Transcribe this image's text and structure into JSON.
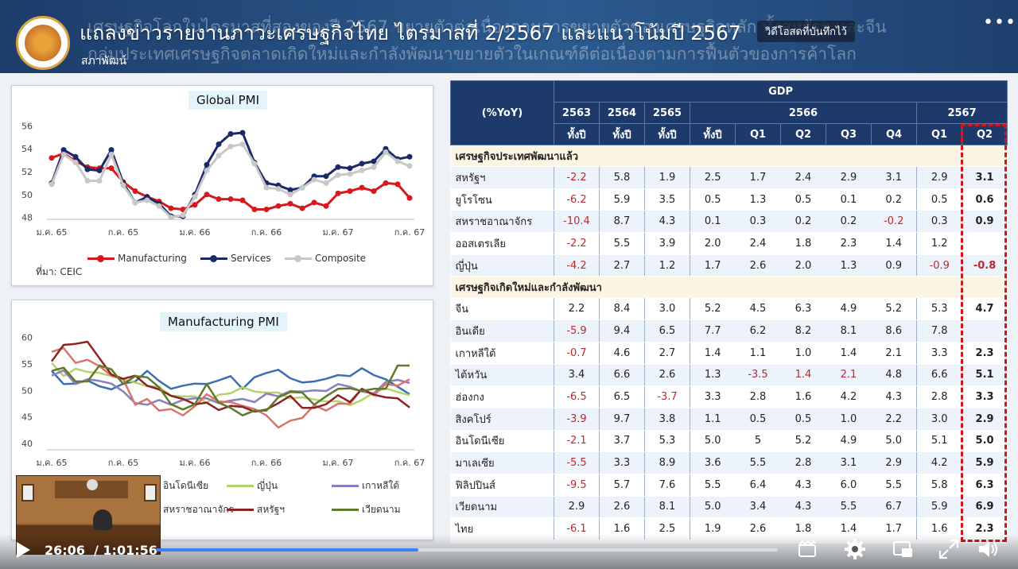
{
  "header": {
    "video_title": "แถลงข่าวรายงานภาวะเศรษฐกิจไทย ไตรมาสที่ 2/2567 และแนวโน้มปี 2567",
    "channel_name": "สภาพัฒน์",
    "live_badge": "วิดีโอสดที่บันทึกไว้",
    "background_line_1": "เศรษฐกิจโลกในไตรมาสที่สองของปี 2567 ขยายตัวต่อเนื่องตามการขยายตัวของเศรษฐกิจหลัก ทั้งสหรัฐฯ และจีน",
    "background_line_2": "กลุ่มประเทศเศรษฐกิจตลาดเกิดใหม่และกำลังพัฒนาขยายตัวในเกณฑ์ดีต่อเนื่องตามการฟื้นตัวของการค้าโลก"
  },
  "chart_data": [
    {
      "type": "line",
      "title": "Global PMI",
      "x_ticks": [
        "ม.ค. 65",
        "ก.ค. 65",
        "ม.ค. 66",
        "ก.ค. 66",
        "ม.ค. 67",
        "ก.ค. 67"
      ],
      "y_ticks": [
        48,
        50,
        52,
        54,
        56
      ],
      "ylim": [
        47,
        57
      ],
      "x_count": 31,
      "source": "ที่มา: CEIC",
      "legend_position": "bottom",
      "series": [
        {
          "name": "Manufacturing",
          "color": "#d7191c",
          "values": [
            53.2,
            53.6,
            52.9,
            52.4,
            52.3,
            52.3,
            51.1,
            50.3,
            49.8,
            49.4,
            48.8,
            48.7,
            49.1,
            50.0,
            49.6,
            49.6,
            49.5,
            48.7,
            48.7,
            49.0,
            49.2,
            48.8,
            49.3,
            49.0,
            50.1,
            50.3,
            50.6,
            50.3,
            51.0,
            50.9,
            49.7
          ]
        },
        {
          "name": "Services",
          "color": "#1a2a66",
          "values": [
            51.0,
            53.9,
            53.3,
            52.2,
            52.1,
            53.9,
            51.0,
            49.3,
            49.8,
            49.2,
            48.1,
            48.1,
            50.0,
            52.6,
            54.4,
            55.3,
            55.4,
            52.8,
            51.0,
            50.8,
            50.4,
            50.6,
            51.6,
            51.6,
            52.4,
            52.3,
            52.7,
            52.9,
            54.0,
            53.1,
            53.3
          ]
        },
        {
          "name": "Composite",
          "color": "#c8c8c8",
          "values": [
            50.9,
            53.5,
            52.8,
            51.2,
            51.2,
            53.5,
            50.8,
            49.3,
            49.5,
            49.0,
            48.0,
            48.2,
            49.8,
            52.1,
            53.4,
            54.2,
            54.4,
            52.7,
            50.6,
            50.5,
            50.0,
            50.6,
            51.3,
            51.0,
            51.7,
            51.8,
            52.1,
            52.4,
            53.7,
            52.9,
            52.5
          ]
        }
      ]
    },
    {
      "type": "line",
      "title": "Manufacturing PMI",
      "x_ticks": [
        "ม.ค. 65",
        "ก.ค. 65",
        "ม.ค. 66",
        "ก.ค. 66",
        "ม.ค. 67",
        "ก.ค. 67"
      ],
      "y_ticks": [
        40,
        45,
        50,
        55,
        60
      ],
      "ylim": [
        40,
        61
      ],
      "x_count": 31,
      "legend_position": "bottom",
      "series": [
        {
          "name": "อินโดนีเซีย",
          "color": "#3a6fb0",
          "values": [
            53.7,
            51.2,
            51.3,
            51.9,
            50.8,
            50.2,
            51.3,
            51.7,
            53.7,
            51.8,
            50.3,
            50.9,
            51.3,
            51.2,
            51.9,
            52.7,
            50.3,
            52.5,
            53.3,
            53.9,
            52.3,
            51.5,
            51.7,
            52.2,
            52.9,
            52.7,
            54.2,
            52.9,
            52.1,
            50.7,
            49.3
          ]
        },
        {
          "name": "ญี่ปุ่น",
          "color": "#b5d36a",
          "values": [
            55.2,
            52.7,
            54.1,
            53.5,
            53.3,
            52.7,
            52.1,
            51.5,
            50.8,
            50.7,
            49.0,
            48.9,
            48.9,
            47.7,
            49.2,
            49.5,
            50.6,
            49.8,
            49.6,
            49.6,
            48.5,
            48.7,
            48.3,
            47.9,
            48.0,
            47.2,
            48.2,
            49.6,
            50.4,
            49.7,
            49.1
          ]
        },
        {
          "name": "เกาหลีใต้",
          "color": "#8a7fc0",
          "values": [
            52.8,
            53.8,
            51.2,
            52.1,
            51.8,
            51.3,
            49.8,
            47.6,
            47.3,
            48.2,
            47.3,
            48.2,
            48.5,
            48.5,
            47.6,
            48.1,
            48.4,
            47.8,
            49.4,
            48.9,
            49.9,
            49.8,
            50.0,
            49.9,
            51.2,
            50.7,
            49.8,
            49.4,
            51.6,
            52.0,
            51.4
          ]
        },
        {
          "name": "สหราชอาณาจักร",
          "color": "#d9746a",
          "values": [
            57.3,
            58.0,
            55.2,
            55.8,
            54.6,
            52.8,
            52.1,
            47.3,
            48.4,
            46.2,
            46.5,
            45.3,
            47.0,
            49.3,
            47.9,
            47.8,
            47.1,
            46.5,
            45.3,
            43.0,
            44.3,
            44.8,
            47.2,
            46.2,
            47.5,
            47.5,
            50.3,
            49.1,
            51.2,
            50.9,
            52.1
          ]
        },
        {
          "name": "สหรัฐฯ",
          "color": "#8b2323",
          "values": [
            55.5,
            58.6,
            58.8,
            59.2,
            56.1,
            53.0,
            52.2,
            52.8,
            50.9,
            50.2,
            49.0,
            48.4,
            47.4,
            47.7,
            46.3,
            47.1,
            46.9,
            46.0,
            46.4,
            47.6,
            49.0,
            46.7,
            46.7,
            47.4,
            49.1,
            47.8,
            50.3,
            49.2,
            48.7,
            48.5,
            46.8
          ]
        },
        {
          "name": "เวียดนาม",
          "color": "#5f7a2a",
          "values": [
            53.7,
            54.3,
            51.7,
            51.7,
            54.7,
            54.0,
            51.2,
            52.7,
            52.5,
            50.6,
            47.4,
            46.4,
            47.4,
            51.2,
            47.7,
            46.7,
            45.3,
            46.2,
            46.2,
            48.7,
            49.7,
            49.6,
            47.3,
            48.9,
            50.3,
            50.4,
            49.9,
            50.3,
            50.3,
            54.7,
            54.7
          ]
        }
      ]
    }
  ],
  "gdp_table": {
    "unit_label": "(%YoY)",
    "group_label": "GDP",
    "years": [
      "2563",
      "2564",
      "2565",
      "2566",
      "2567"
    ],
    "subheaders": [
      "ทั้งปี",
      "ทั้งปี",
      "ทั้งปี",
      "ทั้งปี",
      "Q1",
      "Q2",
      "Q3",
      "Q4",
      "Q1",
      "Q2"
    ],
    "sections": [
      {
        "title": "เศรษฐกิจประเทศพัฒนาแล้ว",
        "rows": [
          {
            "country": "สหรัฐฯ",
            "values": [
              "-2.2",
              "5.8",
              "1.9",
              "2.5",
              "1.7",
              "2.4",
              "2.9",
              "3.1",
              "2.9",
              "3.1"
            ]
          },
          {
            "country": "ยูโรโซน",
            "values": [
              "-6.2",
              "5.9",
              "3.5",
              "0.5",
              "1.3",
              "0.5",
              "0.1",
              "0.2",
              "0.5",
              "0.6"
            ]
          },
          {
            "country": "สหราชอาณาจักร",
            "values": [
              "-10.4",
              "8.7",
              "4.3",
              "0.1",
              "0.3",
              "0.2",
              "0.2",
              "-0.2",
              "0.3",
              "0.9"
            ]
          },
          {
            "country": "ออสเตรเลีย",
            "values": [
              "-2.2",
              "5.5",
              "3.9",
              "2.0",
              "2.4",
              "1.8",
              "2.3",
              "1.4",
              "1.2",
              ""
            ]
          },
          {
            "country": "ญี่ปุ่น",
            "values": [
              "-4.2",
              "2.7",
              "1.2",
              "1.7",
              "2.6",
              "2.0",
              "1.3",
              "0.9",
              "-0.9",
              "-0.8"
            ]
          }
        ]
      },
      {
        "title": "เศรษฐกิจเกิดใหม่และกำลังพัฒนา",
        "rows": [
          {
            "country": "จีน",
            "values": [
              "2.2",
              "8.4",
              "3.0",
              "5.2",
              "4.5",
              "6.3",
              "4.9",
              "5.2",
              "5.3",
              "4.7"
            ]
          },
          {
            "country": "อินเดีย",
            "values": [
              "-5.9",
              "9.4",
              "6.5",
              "7.7",
              "6.2",
              "8.2",
              "8.1",
              "8.6",
              "7.8",
              ""
            ]
          },
          {
            "country": "เกาหลีใต้",
            "values": [
              "-0.7",
              "4.6",
              "2.7",
              "1.4",
              "1.1",
              "1.0",
              "1.4",
              "2.1",
              "3.3",
              "2.3"
            ]
          },
          {
            "country": "ไต้หวัน",
            "values": [
              "3.4",
              "6.6",
              "2.6",
              "1.3",
              "-3.5",
              "1.4",
              "2.1",
              "4.8",
              "6.6",
              "5.1"
            ]
          },
          {
            "country": "ฮ่องกง",
            "values": [
              "-6.5",
              "6.5",
              "-3.7",
              "3.3",
              "2.8",
              "1.6",
              "4.2",
              "4.3",
              "2.8",
              "3.3"
            ]
          },
          {
            "country": "สิงคโปร์",
            "values": [
              "-3.9",
              "9.7",
              "3.8",
              "1.1",
              "0.5",
              "0.5",
              "1.0",
              "2.2",
              "3.0",
              "2.9"
            ]
          },
          {
            "country": "อินโดนีเซีย",
            "values": [
              "-2.1",
              "3.7",
              "5.3",
              "5.0",
              "5",
              "5.2",
              "4.9",
              "5.0",
              "5.1",
              "5.0"
            ]
          },
          {
            "country": "มาเลเซีย",
            "values": [
              "-5.5",
              "3.3",
              "8.9",
              "3.6",
              "5.5",
              "2.8",
              "3.1",
              "2.9",
              "4.2",
              "5.9"
            ]
          },
          {
            "country": "ฟิลิปปินส์",
            "values": [
              "-9.5",
              "5.7",
              "7.6",
              "5.5",
              "6.4",
              "4.3",
              "6.0",
              "5.5",
              "5.8",
              "6.3"
            ]
          },
          {
            "country": "เวียดนาม",
            "values": [
              "2.9",
              "2.6",
              "8.1",
              "5.0",
              "3.4",
              "4.3",
              "5.5",
              "6.7",
              "5.9",
              "6.9"
            ]
          },
          {
            "country": "ไทย",
            "values": [
              "-6.1",
              "1.6",
              "2.5",
              "1.9",
              "2.6",
              "1.8",
              "1.4",
              "1.7",
              "1.6",
              "2.3"
            ]
          }
        ]
      }
    ],
    "red_cells": [
      {
        "country": "ไต้หวัน",
        "cols": [
          4,
          5,
          6
        ]
      }
    ]
  },
  "pip": {
    "board_text": "สำนักงานสภาพัฒนาการเศรษฐกิจและสังคมแห่งชาติ"
  },
  "player": {
    "time_current": "26:06",
    "time_duration": "/ 1:01:56",
    "progress_fraction": 0.422
  },
  "colors": {
    "banner": "#1d3d6b",
    "table_header": "#1d3a6b",
    "highlight": "#d0161b",
    "progress": "#3b82f6"
  },
  "icons": [
    "more-options-icon",
    "play-icon",
    "clip-icon",
    "settings-icon",
    "miniplayer-icon",
    "fullscreen-icon",
    "volume-icon"
  ]
}
